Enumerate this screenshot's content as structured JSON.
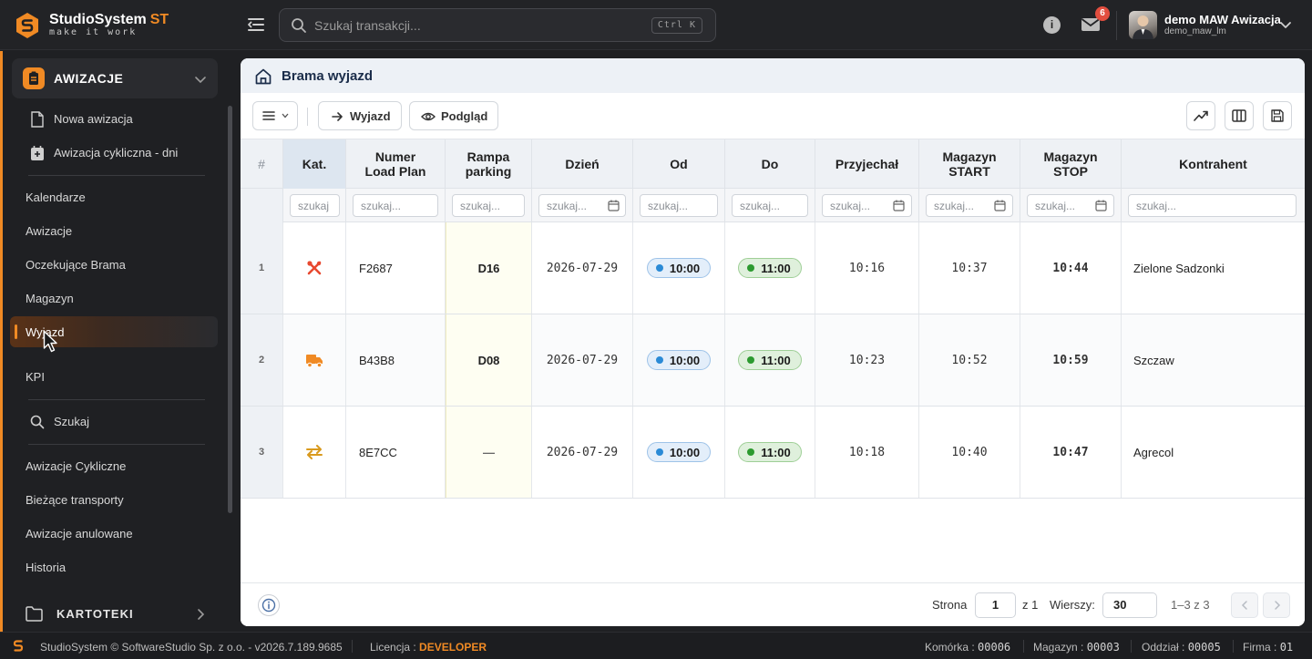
{
  "topbar": {
    "brand_name": "StudioSystem",
    "brand_suffix": "ST",
    "tagline": "make it work",
    "search_placeholder": "Szukaj transakcji...",
    "search_shortcut": "Ctrl K",
    "notifications_count": "6",
    "user_name": "demo MAW Awizacja",
    "user_login": "demo_maw_lm",
    "brand_color": "#f08a24"
  },
  "sidebar": {
    "section_title": "AWIZACJE",
    "sub_items": [
      {
        "label": "Nowa awizacja",
        "icon": "file-icon"
      },
      {
        "label": "Awizacja cykliczna - dni",
        "icon": "calendar-icon"
      }
    ],
    "items": [
      {
        "label": "Kalendarze"
      },
      {
        "label": "Awizacje"
      },
      {
        "label": "Oczekujące Brama"
      },
      {
        "label": "Magazyn"
      },
      {
        "label": "Wyjazd",
        "active": true
      },
      {
        "label": "KPI"
      }
    ],
    "search_label": "Szukaj",
    "items2": [
      {
        "label": "Awizacje Cykliczne"
      },
      {
        "label": "Bieżące transporty"
      },
      {
        "label": "Awizacje anulowane"
      },
      {
        "label": "Historia"
      }
    ],
    "section2_title": "KARTOTEKI"
  },
  "page": {
    "title": "Brama wyjazd"
  },
  "toolbar": {
    "wyjazd_label": "Wyjazd",
    "podglad_label": "Podgląd"
  },
  "table": {
    "headers": {
      "hash": "#",
      "kat": "Kat.",
      "numer_1": "Numer",
      "numer_2": "Load Plan",
      "rampa_1": "Rampa",
      "rampa_2": "parking",
      "dzien": "Dzień",
      "od": "Od",
      "do": "Do",
      "przyjechal": "Przyjechał",
      "mstart_1": "Magazyn",
      "mstart_2": "START",
      "mstop_1": "Magazyn",
      "mstop_2": "STOP",
      "kontrahent": "Kontrahent"
    },
    "filter_placeholders": {
      "kat": "szukaj",
      "other": "szukaj..."
    },
    "rows": [
      {
        "num": "1",
        "kat_icon": "tools-icon",
        "numer": "F2687",
        "rampa": "D16",
        "dzien": "2026-07-29",
        "od": "10:00",
        "do": "11:00",
        "przyjechal": "10:16",
        "mstart": "10:37",
        "mstop": "10:44",
        "kontrahent": "Zielone Sadzonki"
      },
      {
        "num": "2",
        "kat_icon": "truck-icon",
        "numer": "B43B8",
        "rampa": "D08",
        "dzien": "2026-07-29",
        "od": "10:00",
        "do": "11:00",
        "przyjechal": "10:23",
        "mstart": "10:52",
        "mstop": "10:59",
        "kontrahent": "Szczaw"
      },
      {
        "num": "3",
        "kat_icon": "swap-arrows-icon",
        "numer": "8E7CC",
        "rampa": "—",
        "dzien": "2026-07-29",
        "od": "10:00",
        "do": "11:00",
        "przyjechal": "10:18",
        "mstart": "10:40",
        "mstop": "10:47",
        "kontrahent": "Agrecol"
      }
    ]
  },
  "pagination": {
    "strona_label": "Strona",
    "page": "1",
    "of_pages": "z 1",
    "wiersze_label": "Wierszy:",
    "rows_per_page": "30",
    "range": "1–3  z  3"
  },
  "statusbar": {
    "copyright": "StudioSystem © SoftwareStudio Sp. z o.o. - v2026.7.189.9685",
    "licencja_label": "Licencja :",
    "licencja_value": "DEVELOPER",
    "komorka_label": "Komórka :",
    "komorka_value": "00006",
    "magazyn_label": "Magazyn :",
    "magazyn_value": "00003",
    "oddzial_label": "Oddział :",
    "oddzial_value": "00005",
    "firma_label": "Firma :",
    "firma_value": "01"
  }
}
